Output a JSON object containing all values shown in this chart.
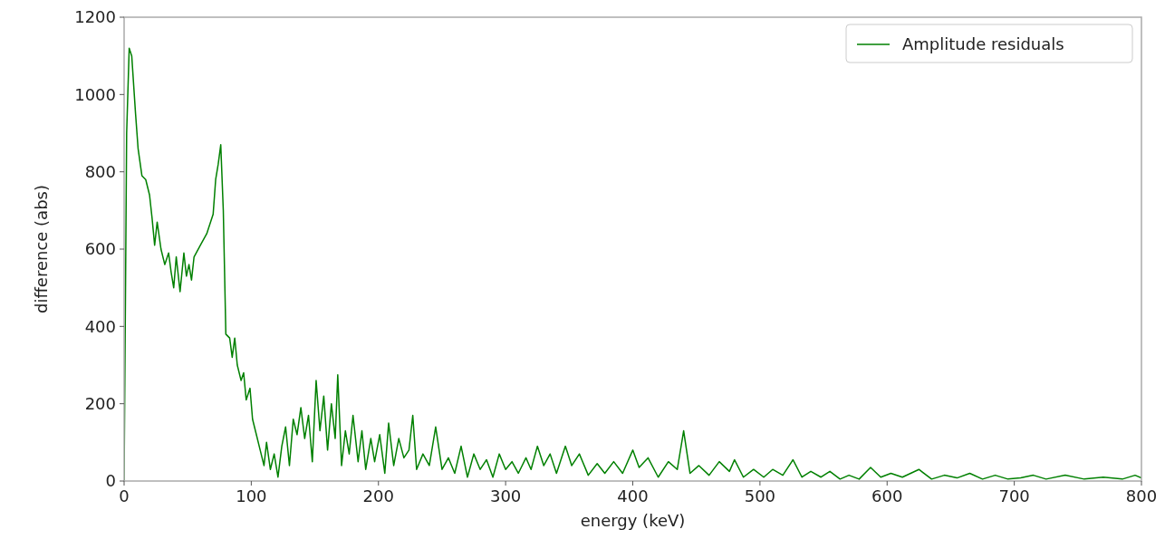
{
  "chart_data": {
    "type": "line",
    "xlabel": "energy (keV)",
    "ylabel": "difference (abs)",
    "xlim": [
      0,
      800
    ],
    "xticks": [
      0,
      100,
      200,
      300,
      400,
      500,
      600,
      700,
      800
    ],
    "ylim": [
      0,
      1200
    ],
    "yticks": [
      0,
      200,
      400,
      600,
      800,
      1000,
      1200
    ],
    "grid": false,
    "legend": "top right",
    "marker": "none",
    "line_style": "solid",
    "series": [
      {
        "name": "Amplitude residuals",
        "color": "#008000",
        "x": [
          0,
          2,
          4,
          6,
          9,
          11,
          14,
          17,
          20,
          22,
          24,
          26,
          29,
          32,
          35,
          37,
          39,
          41,
          44,
          47,
          49,
          51,
          53,
          55,
          60,
          65,
          70,
          72,
          74,
          76,
          78,
          80,
          83,
          85,
          87,
          89,
          92,
          94,
          96,
          99,
          101,
          104,
          107,
          110,
          112,
          115,
          118,
          121,
          124,
          127,
          130,
          133,
          136,
          139,
          142,
          145,
          148,
          151,
          154,
          157,
          160,
          163,
          166,
          168,
          171,
          174,
          177,
          180,
          184,
          187,
          190,
          194,
          197,
          201,
          205,
          208,
          212,
          216,
          220,
          224,
          227,
          230,
          235,
          240,
          245,
          250,
          255,
          260,
          265,
          270,
          275,
          280,
          285,
          290,
          295,
          300,
          305,
          310,
          316,
          320,
          325,
          330,
          335,
          340,
          347,
          352,
          358,
          365,
          372,
          378,
          385,
          392,
          400,
          405,
          412,
          420,
          428,
          435,
          440,
          445,
          452,
          460,
          468,
          476,
          480,
          487,
          495,
          503,
          510,
          518,
          526,
          533,
          540,
          548,
          555,
          563,
          570,
          578,
          587,
          595,
          603,
          612,
          625,
          635,
          645,
          655,
          665,
          675,
          685,
          695,
          705,
          715,
          725,
          740,
          755,
          770,
          785,
          795,
          800
        ],
        "values": [
          0,
          900,
          1120,
          1100,
          950,
          860,
          790,
          780,
          740,
          680,
          610,
          670,
          600,
          560,
          590,
          540,
          500,
          580,
          490,
          590,
          530,
          560,
          520,
          580,
          610,
          640,
          690,
          780,
          820,
          870,
          700,
          380,
          370,
          320,
          370,
          300,
          260,
          280,
          210,
          240,
          160,
          120,
          80,
          40,
          100,
          30,
          70,
          10,
          90,
          140,
          40,
          160,
          120,
          190,
          110,
          170,
          50,
          260,
          130,
          220,
          80,
          200,
          110,
          275,
          40,
          130,
          70,
          170,
          50,
          130,
          30,
          110,
          50,
          120,
          20,
          150,
          40,
          110,
          60,
          80,
          170,
          30,
          70,
          40,
          140,
          30,
          60,
          20,
          90,
          10,
          70,
          30,
          55,
          10,
          70,
          30,
          50,
          20,
          60,
          30,
          90,
          40,
          70,
          20,
          90,
          40,
          70,
          15,
          45,
          20,
          50,
          20,
          80,
          35,
          60,
          10,
          50,
          30,
          130,
          20,
          40,
          15,
          50,
          25,
          55,
          10,
          30,
          10,
          30,
          15,
          55,
          10,
          25,
          10,
          25,
          5,
          15,
          5,
          35,
          10,
          20,
          10,
          30,
          5,
          15,
          8,
          20,
          5,
          15,
          5,
          8,
          15,
          5,
          15,
          5,
          10,
          5,
          15,
          8
        ]
      }
    ]
  }
}
